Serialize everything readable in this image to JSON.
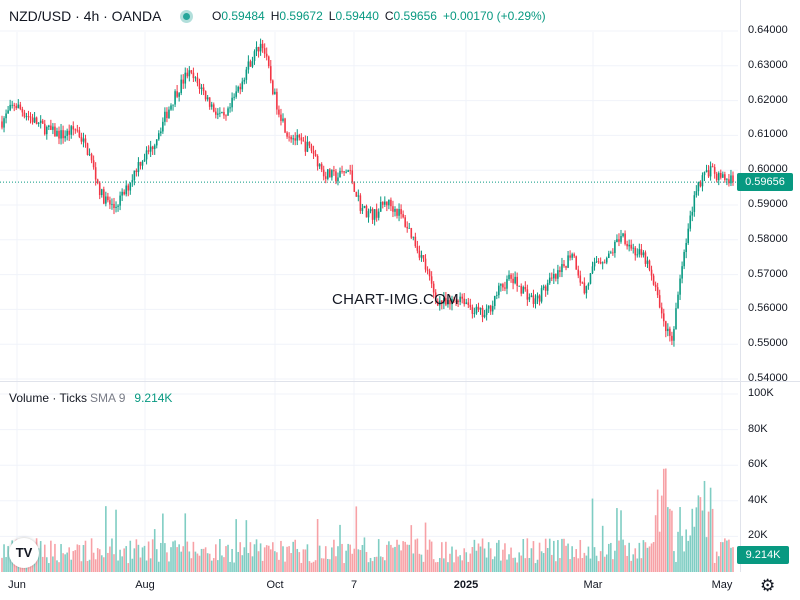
{
  "header": {
    "symbol": "NZD/USD · 4h · OANDA",
    "ohlc": [
      {
        "key": "O",
        "value": "0.59484"
      },
      {
        "key": "H",
        "value": "0.59672"
      },
      {
        "key": "L",
        "value": "0.59440"
      },
      {
        "key": "C",
        "value": "0.59656"
      }
    ],
    "change": "+0.00170 (+0.29%)"
  },
  "volume_legend": {
    "title": "Volume · Ticks",
    "sma": "SMA 9",
    "value": "9.214K"
  },
  "watermark": "CHART-IMG.COM",
  "current_price_tag": "0.59656",
  "volume_tag": "9.214K",
  "colors": {
    "up": "#089981",
    "down": "#f23645",
    "up_vol": "#7fcdc3",
    "down_vol": "#f7a1a6",
    "grid": "#f0f3fa"
  },
  "icons": {
    "logo": "tradingview-logo-icon",
    "settings": "gear-icon"
  },
  "chart_data": [
    {
      "type": "candlestick",
      "title": "NZD/USD · 4h · OANDA",
      "y_axis_ticks": [
        "0.64000",
        "0.63000",
        "0.62000",
        "0.61000",
        "0.60000",
        "0.59000",
        "0.58000",
        "0.57000",
        "0.56000",
        "0.55000",
        "0.54000"
      ],
      "ylim": [
        0.54,
        0.64
      ],
      "x_axis_ticks": [
        "Jun",
        "Aug",
        "Oct",
        "7",
        "2025",
        "Mar",
        "May"
      ],
      "bold_x_ticks": [
        "2025"
      ],
      "last_close": 0.59656,
      "approx_close_path": [
        0.614,
        0.619,
        0.616,
        0.613,
        0.611,
        0.61,
        0.612,
        0.605,
        0.593,
        0.589,
        0.594,
        0.602,
        0.606,
        0.614,
        0.622,
        0.628,
        0.624,
        0.618,
        0.614,
        0.623,
        0.631,
        0.637,
        0.621,
        0.611,
        0.608,
        0.606,
        0.599,
        0.598,
        0.6,
        0.589,
        0.587,
        0.591,
        0.588,
        0.582,
        0.574,
        0.563,
        0.561,
        0.564,
        0.56,
        0.558,
        0.565,
        0.569,
        0.566,
        0.562,
        0.567,
        0.57,
        0.577,
        0.565,
        0.574,
        0.575,
        0.582,
        0.577,
        0.574,
        0.562,
        0.55,
        0.575,
        0.595,
        0.6,
        0.598,
        0.5966
      ]
    },
    {
      "type": "bar",
      "title": "Volume · Ticks",
      "y_axis_ticks": [
        "100K",
        "80K",
        "60K",
        "40K",
        "20K"
      ],
      "ylim": [
        0,
        100
      ],
      "sma_period": 9,
      "last_value": "9.214K"
    }
  ]
}
